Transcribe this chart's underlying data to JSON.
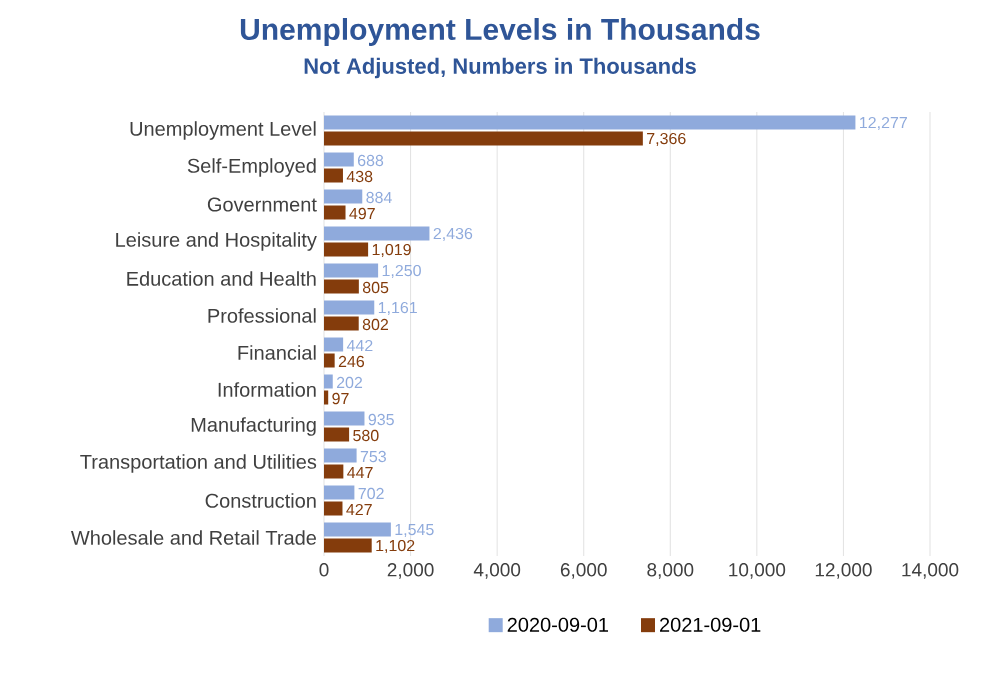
{
  "chart_data": {
    "type": "bar",
    "orientation": "horizontal",
    "title": "Unemployment Levels in Thousands",
    "subtitle": "Not Adjusted, Numbers in Thousands",
    "categories": [
      "Unemployment Level",
      "Self-Employed",
      "Government",
      "Leisure and Hospitality",
      "Education and Health",
      "Professional",
      "Financial",
      "Information",
      "Manufacturing",
      "Transportation and Utilities",
      "Construction",
      "Wholesale and Retail Trade"
    ],
    "series": [
      {
        "name": "2020-09-01",
        "color": "#8faadc",
        "values": [
          12277,
          688,
          884,
          2436,
          1250,
          1161,
          442,
          202,
          935,
          753,
          702,
          1545
        ],
        "value_labels": [
          "12,277",
          "688",
          "884",
          "2,436",
          "1,250",
          "1,161",
          "442",
          "202",
          "935",
          "753",
          "702",
          "1,545"
        ]
      },
      {
        "name": "2021-09-01",
        "color": "#843c0c",
        "values": [
          7366,
          438,
          497,
          1019,
          805,
          802,
          246,
          97,
          580,
          447,
          427,
          1102
        ],
        "value_labels": [
          "7,366",
          "438",
          "497",
          "1,019",
          "805",
          "802",
          "246",
          "97",
          "580",
          "447",
          "427",
          "1,102"
        ]
      }
    ],
    "xlim": [
      0,
      14000
    ],
    "xticks": [
      0,
      {
        "value": 2000,
        "label": "2,000"
      },
      {
        "value": 4000,
        "label": "4,000"
      },
      {
        "value": 6000,
        "label": "6,000"
      },
      {
        "value": 8000,
        "label": "8,000"
      },
      {
        "value": 10000,
        "label": "10,000"
      },
      {
        "value": 12000,
        "label": "12,000"
      },
      {
        "value": 14000,
        "label": "14,000"
      }
    ],
    "grid": "x",
    "legend": "bottom"
  }
}
